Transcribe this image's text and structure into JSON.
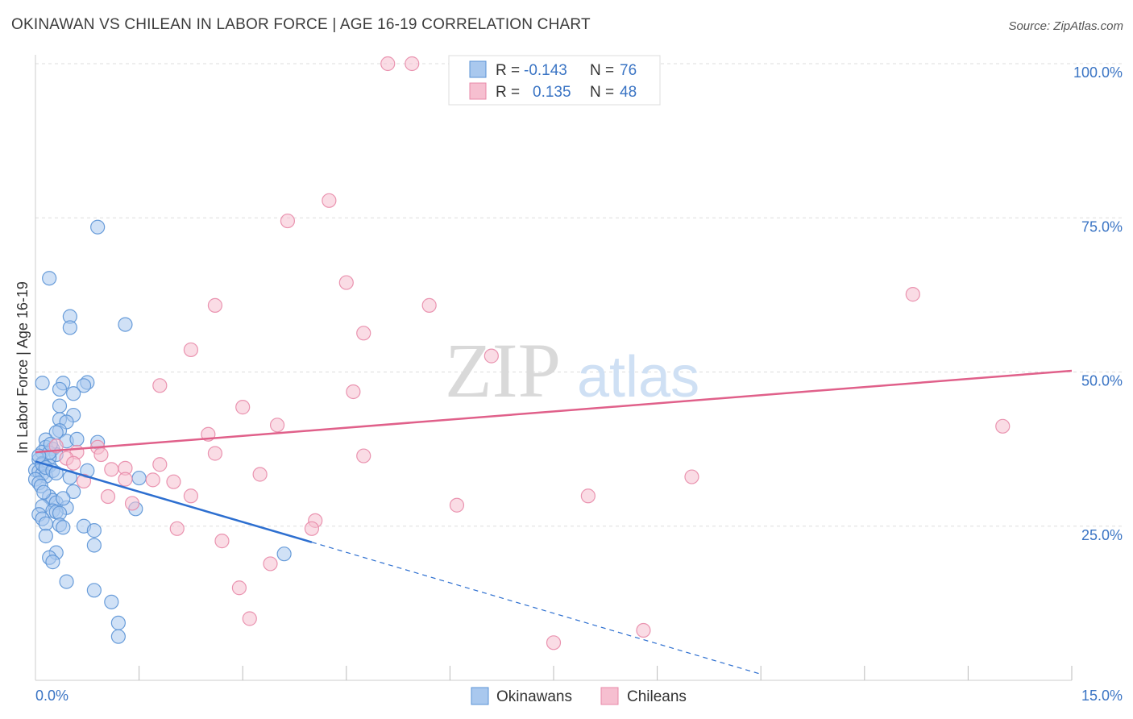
{
  "title": "OKINAWAN VS CHILEAN IN LABOR FORCE | AGE 16-19 CORRELATION CHART",
  "source": "Source: ZipAtlas.com",
  "watermark": {
    "zip": "ZIP",
    "atlas": "atlas"
  },
  "colors": {
    "blue_fill": "#a9c8ee",
    "blue_stroke": "#5b93d6",
    "blue_line": "#2d6fd0",
    "pink_fill": "#f6bfd0",
    "pink_stroke": "#e88aa8",
    "pink_line": "#e0608a",
    "grid": "#dddddd",
    "axis_text": "#3a74c4"
  },
  "legend": {
    "rows": [
      {
        "r_label": "R =",
        "r_value": "-0.143",
        "n_label": "N =",
        "n_value": "76",
        "series": "Okinawans"
      },
      {
        "r_label": "R =",
        "r_value": "0.135",
        "n_label": "N =",
        "n_value": "48",
        "series": "Chileans"
      }
    ]
  },
  "bottom_legend": [
    "Okinawans",
    "Chileans"
  ],
  "chart_data": {
    "type": "scatter",
    "xlabel": "",
    "ylabel": "In Labor Force | Age 16-19",
    "xlim": [
      0,
      15
    ],
    "ylim": [
      0,
      100
    ],
    "x_tick_labels": [
      "0.0%",
      "15.0%"
    ],
    "y_ticks": [
      25,
      50,
      75,
      100
    ],
    "y_tick_labels": [
      "25.0%",
      "50.0%",
      "75.0%",
      "100.0%"
    ],
    "series": [
      {
        "name": "Okinawans",
        "r": -0.143,
        "n": 76,
        "trend": {
          "x0": 0.0,
          "y0": 35.5,
          "x1": 4.0,
          "y1": 22.4,
          "dash_x1": 10.5,
          "dash_y1": 1.0
        },
        "points": [
          [
            0.9,
            73.5
          ],
          [
            0.2,
            65.2
          ],
          [
            0.5,
            59.0
          ],
          [
            0.5,
            57.2
          ],
          [
            1.3,
            57.7
          ],
          [
            0.1,
            48.2
          ],
          [
            0.4,
            48.2
          ],
          [
            0.75,
            48.3
          ],
          [
            0.7,
            47.8
          ],
          [
            0.35,
            47.2
          ],
          [
            0.55,
            46.5
          ],
          [
            0.35,
            44.5
          ],
          [
            0.55,
            43.0
          ],
          [
            0.35,
            42.3
          ],
          [
            0.45,
            41.9
          ],
          [
            0.35,
            40.5
          ],
          [
            0.3,
            40.2
          ],
          [
            0.15,
            39.0
          ],
          [
            0.45,
            38.8
          ],
          [
            0.6,
            39.1
          ],
          [
            0.9,
            38.6
          ],
          [
            0.15,
            37.8
          ],
          [
            0.25,
            37.5
          ],
          [
            0.1,
            37.0
          ],
          [
            0.3,
            36.6
          ],
          [
            0.2,
            36.1
          ],
          [
            0.05,
            35.8
          ],
          [
            0.1,
            35.2
          ],
          [
            0.2,
            34.8
          ],
          [
            0.0,
            34.1
          ],
          [
            0.05,
            33.9
          ],
          [
            0.1,
            33.5
          ],
          [
            0.15,
            33.1
          ],
          [
            0.0,
            32.6
          ],
          [
            0.05,
            32.0
          ],
          [
            0.5,
            32.9
          ],
          [
            0.75,
            34.0
          ],
          [
            0.55,
            30.6
          ],
          [
            0.2,
            29.8
          ],
          [
            0.25,
            29.2
          ],
          [
            0.3,
            28.8
          ],
          [
            0.1,
            28.2
          ],
          [
            0.45,
            28.0
          ],
          [
            0.25,
            27.5
          ],
          [
            0.3,
            27.3
          ],
          [
            0.35,
            27.1
          ],
          [
            0.05,
            26.9
          ],
          [
            0.1,
            26.2
          ],
          [
            1.45,
            27.8
          ],
          [
            1.5,
            32.8
          ],
          [
            0.35,
            25.2
          ],
          [
            0.7,
            25.0
          ],
          [
            0.4,
            24.8
          ],
          [
            0.15,
            25.4
          ],
          [
            0.85,
            24.3
          ],
          [
            0.15,
            23.4
          ],
          [
            0.85,
            21.9
          ],
          [
            0.3,
            20.7
          ],
          [
            0.2,
            19.9
          ],
          [
            0.25,
            19.2
          ],
          [
            3.6,
            20.5
          ],
          [
            0.45,
            16.0
          ],
          [
            0.85,
            14.6
          ],
          [
            1.1,
            12.7
          ],
          [
            1.2,
            9.3
          ],
          [
            1.2,
            7.1
          ],
          [
            0.1,
            35.0
          ],
          [
            0.2,
            36.9
          ],
          [
            0.05,
            36.4
          ],
          [
            0.15,
            34.5
          ],
          [
            0.25,
            34.0
          ],
          [
            0.3,
            33.6
          ],
          [
            0.08,
            31.5
          ],
          [
            0.12,
            30.5
          ],
          [
            0.4,
            29.5
          ],
          [
            0.22,
            38.3
          ]
        ]
      },
      {
        "name": "Chileans",
        "r": 0.135,
        "n": 48,
        "trend": {
          "x0": 0.0,
          "y0": 37.0,
          "x1": 15.0,
          "y1": 50.2
        },
        "points": [
          [
            5.1,
            100.0
          ],
          [
            5.45,
            100.0
          ],
          [
            4.25,
            77.8
          ],
          [
            3.65,
            74.5
          ],
          [
            4.5,
            64.5
          ],
          [
            12.7,
            62.6
          ],
          [
            2.6,
            60.8
          ],
          [
            5.7,
            60.8
          ],
          [
            4.75,
            56.3
          ],
          [
            2.25,
            53.6
          ],
          [
            6.6,
            52.6
          ],
          [
            1.8,
            47.8
          ],
          [
            4.6,
            46.8
          ],
          [
            3.0,
            44.3
          ],
          [
            14.0,
            41.2
          ],
          [
            3.5,
            41.4
          ],
          [
            2.5,
            39.9
          ],
          [
            0.9,
            37.8
          ],
          [
            0.6,
            37.0
          ],
          [
            0.45,
            36.0
          ],
          [
            4.75,
            36.4
          ],
          [
            2.6,
            36.8
          ],
          [
            0.95,
            36.6
          ],
          [
            1.3,
            34.4
          ],
          [
            1.8,
            35.0
          ],
          [
            1.1,
            34.2
          ],
          [
            3.25,
            33.4
          ],
          [
            1.7,
            32.5
          ],
          [
            2.0,
            32.2
          ],
          [
            9.5,
            33.0
          ],
          [
            1.3,
            32.6
          ],
          [
            0.7,
            32.3
          ],
          [
            8.0,
            29.9
          ],
          [
            2.25,
            29.9
          ],
          [
            1.05,
            29.8
          ],
          [
            1.4,
            28.7
          ],
          [
            6.1,
            28.4
          ],
          [
            4.05,
            25.9
          ],
          [
            2.05,
            24.6
          ],
          [
            4.0,
            24.6
          ],
          [
            2.7,
            22.6
          ],
          [
            3.4,
            18.9
          ],
          [
            2.95,
            15.0
          ],
          [
            3.1,
            10.0
          ],
          [
            8.8,
            8.1
          ],
          [
            7.5,
            6.1
          ],
          [
            0.3,
            38.0
          ],
          [
            0.55,
            35.2
          ]
        ]
      }
    ]
  }
}
